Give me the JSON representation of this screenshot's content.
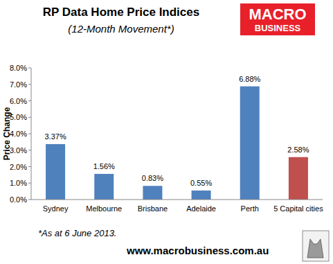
{
  "chart_data": {
    "type": "bar",
    "title": "RP Data Home Price Indices",
    "subtitle": "(12-Month Movement*)",
    "y_label": "Price Change",
    "logo": [
      "MACRO",
      "BUSINESS"
    ],
    "annotations": [
      "*As at 6 June 2013.",
      "www.macrobusiness.com.au"
    ],
    "categories": [
      "Sydney",
      "Melbourne",
      "Brisbane",
      "Adelaide",
      "Perth",
      "5 Capital cities"
    ],
    "values": [
      3.37,
      1.56,
      0.83,
      0.55,
      6.88,
      2.58
    ],
    "value_labels": [
      "3.37%",
      "1.56%",
      "0.83%",
      "0.55%",
      "6.88%",
      "2.58%"
    ],
    "colors": [
      "#4f81bd",
      "#4f81bd",
      "#4f81bd",
      "#4f81bd",
      "#4f81bd",
      "#c0504d"
    ],
    "ylim": [
      0,
      8
    ],
    "yticks": [
      {
        "value": 0,
        "label": "0.0%"
      },
      {
        "value": 1,
        "label": "1.0%"
      },
      {
        "value": 2,
        "label": "2.0%"
      },
      {
        "value": 3,
        "label": "3.0%"
      },
      {
        "value": 4,
        "label": "4.0%"
      },
      {
        "value": 5,
        "label": "5.0%"
      },
      {
        "value": 6,
        "label": "6.0%"
      },
      {
        "value": 7,
        "label": "7.0%"
      },
      {
        "value": 8,
        "label": "8.0%"
      }
    ],
    "grid": false,
    "data_labels": true
  }
}
